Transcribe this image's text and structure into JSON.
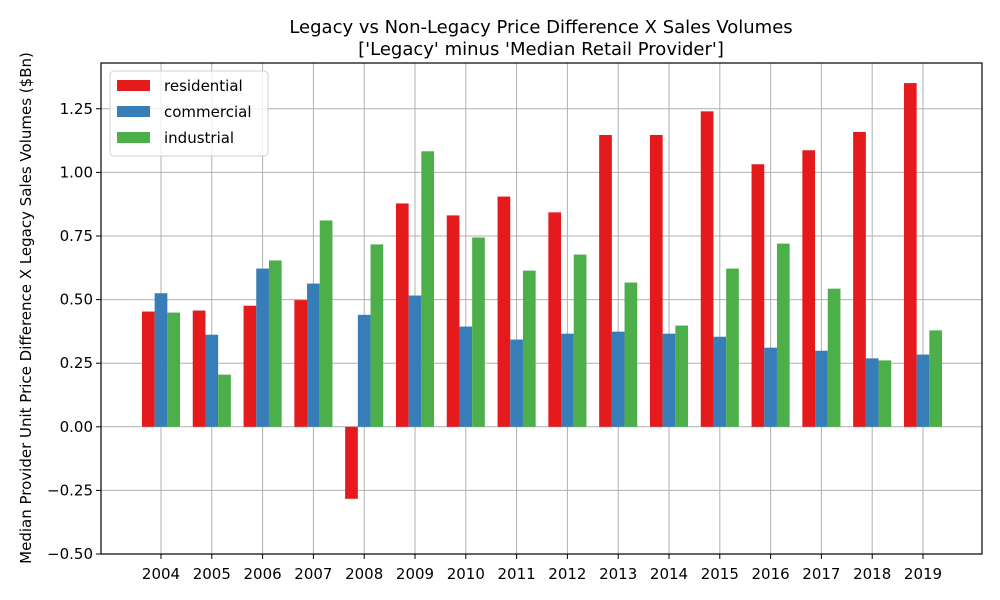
{
  "chart_data": {
    "type": "bar",
    "title": "Legacy vs Non-Legacy Price Difference X Sales Volumes",
    "subtitle": "['Legacy' minus 'Median Retail Provider']",
    "xlabel": "",
    "ylabel": "Median Provider Unit Price Difference X Legacy Sales Volumes ($Bn)",
    "ylim": [
      -0.5,
      1.43
    ],
    "yticks": [
      -0.5,
      -0.25,
      0.0,
      0.25,
      0.5,
      0.75,
      1.0,
      1.25
    ],
    "ytick_labels": [
      "−0.50",
      "−0.25",
      "0.00",
      "0.25",
      "0.50",
      "0.75",
      "1.00",
      "1.25"
    ],
    "grid": true,
    "legend_position": "top-left",
    "categories": [
      "2004",
      "2005",
      "2006",
      "2007",
      "2008",
      "2009",
      "2010",
      "2011",
      "2012",
      "2013",
      "2014",
      "2015",
      "2016",
      "2017",
      "2018",
      "2019"
    ],
    "series": [
      {
        "name": "residential",
        "color": "#e41a1c",
        "values": [
          0.453,
          0.457,
          0.476,
          0.498,
          -0.283,
          0.878,
          0.831,
          0.905,
          0.843,
          1.147,
          1.147,
          1.24,
          1.032,
          1.087,
          1.159,
          1.351
        ]
      },
      {
        "name": "commercial",
        "color": "#377eb8",
        "values": [
          0.525,
          0.362,
          0.622,
          0.563,
          0.44,
          0.516,
          0.394,
          0.343,
          0.366,
          0.374,
          0.366,
          0.354,
          0.311,
          0.299,
          0.269,
          0.284
        ]
      },
      {
        "name": "industrial",
        "color": "#4daf4a",
        "values": [
          0.449,
          0.205,
          0.654,
          0.811,
          0.717,
          1.083,
          0.744,
          0.614,
          0.677,
          0.567,
          0.398,
          0.622,
          0.72,
          0.543,
          0.261,
          0.379
        ]
      }
    ]
  }
}
